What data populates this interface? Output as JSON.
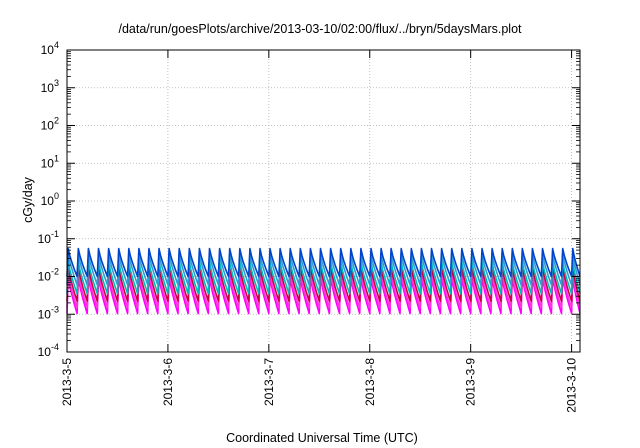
{
  "chart_data": {
    "type": "line",
    "title": "/data/run/goesPlots/archive/2013-03-10/02:00/flux/../bryn/5daysMars.plot",
    "xlabel": "Coordinated Universal Time (UTC)",
    "ylabel": "cGy/day",
    "yscale": "log",
    "ylim": [
      0.0001,
      10000
    ],
    "xlim": [
      "2013-03-05 00:00",
      "2013-03-10 02:00"
    ],
    "grid": true,
    "x_tick_labels": [
      "2013-3-5",
      "2013-3-6",
      "2013-3-7",
      "2013-3-8",
      "2013-3-9",
      "2013-3-10"
    ],
    "y_tick_labels": [
      {
        "base": "10",
        "exp": "-4"
      },
      {
        "base": "10",
        "exp": "-3"
      },
      {
        "base": "10",
        "exp": "-2"
      },
      {
        "base": "10",
        "exp": "-1"
      },
      {
        "base": "10",
        "exp": "0"
      },
      {
        "base": "10",
        "exp": "1"
      },
      {
        "base": "10",
        "exp": "2"
      },
      {
        "base": "10",
        "exp": "3"
      },
      {
        "base": "10",
        "exp": "4"
      }
    ],
    "pattern": {
      "cycles_per_day": 10,
      "description_peak_to_trough": true
    },
    "series": [
      {
        "color": "#ff00ff",
        "peak": 0.0095,
        "trough": 0.00105
      },
      {
        "color": "#ff33dd",
        "peak": 0.012,
        "trough": 0.0015
      },
      {
        "color": "#cc0044",
        "peak": 0.018,
        "trough": 0.0022
      },
      {
        "color": "#00bbbb",
        "peak": 0.025,
        "trough": 0.0035
      },
      {
        "color": "#2e9bd6",
        "peak": 0.04,
        "trough": 0.006
      },
      {
        "color": "#0044cc",
        "peak": 0.055,
        "trough": 0.01
      }
    ]
  }
}
